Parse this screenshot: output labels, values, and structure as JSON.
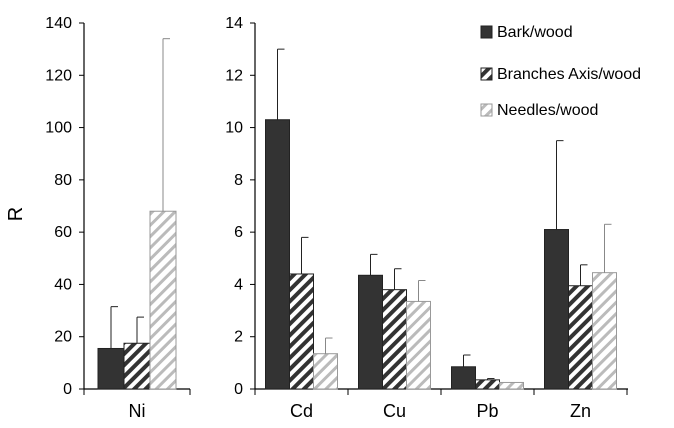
{
  "chart_data": [
    {
      "type": "bar",
      "ylabel": "R",
      "ylim": [
        0,
        140
      ],
      "yticks": [
        "0",
        "20",
        "40",
        "60",
        "80",
        "100",
        "120",
        "140"
      ],
      "categories": [
        "Ni"
      ],
      "series": [
        {
          "name": "Bark/wood",
          "values": [
            15.5
          ],
          "errors": [
            16
          ],
          "color": "#333333",
          "pattern": "solid"
        },
        {
          "name": "Branches Axis/wood",
          "values": [
            17.5
          ],
          "errors": [
            10
          ],
          "color": "#333333",
          "pattern": "dark-diagonal"
        },
        {
          "name": "Needles/wood",
          "values": [
            68
          ],
          "errors": [
            66
          ],
          "color": "#bbbbbb",
          "pattern": "light-diagonal"
        }
      ]
    },
    {
      "type": "bar",
      "ylim": [
        0,
        14
      ],
      "yticks": [
        "0",
        "2",
        "4",
        "6",
        "8",
        "10",
        "12",
        "14"
      ],
      "categories": [
        "Cd",
        "Cu",
        "Pb",
        "Zn"
      ],
      "legend": "top-right",
      "series": [
        {
          "name": "Bark/wood",
          "values": [
            10.3,
            4.35,
            0.85,
            6.1
          ],
          "errors": [
            2.7,
            0.8,
            0.45,
            3.4
          ],
          "color": "#333333",
          "pattern": "solid"
        },
        {
          "name": "Branches Axis/wood",
          "values": [
            4.4,
            3.8,
            0.35,
            3.95
          ],
          "errors": [
            1.4,
            0.8,
            0.05,
            0.8
          ],
          "color": "#333333",
          "pattern": "dark-diagonal"
        },
        {
          "name": "Needles/wood",
          "values": [
            1.35,
            3.35,
            0.25,
            4.45
          ],
          "errors": [
            0.6,
            0.8,
            0.0,
            1.85
          ],
          "color": "#bbbbbb",
          "pattern": "light-diagonal"
        }
      ]
    }
  ]
}
